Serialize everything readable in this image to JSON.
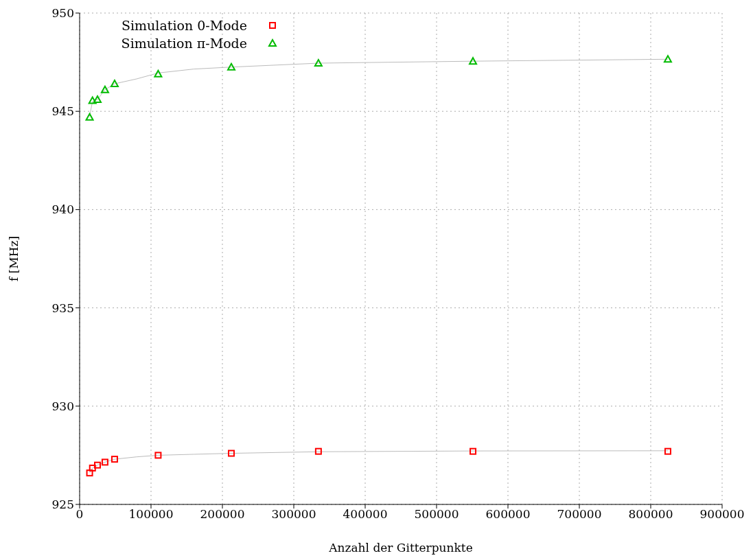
{
  "chart_data": {
    "type": "scatter",
    "xlabel": "Anzahl der Gitterpunkte",
    "ylabel": "f [MHz]",
    "xlim": [
      0,
      900000
    ],
    "xticks": [
      0,
      100000,
      200000,
      300000,
      400000,
      500000,
      600000,
      700000,
      800000,
      900000
    ],
    "ylim": [
      925,
      950
    ],
    "yticks": [
      925,
      930,
      935,
      940,
      945,
      950
    ],
    "grid": true,
    "legend": "top left",
    "series": [
      {
        "name": "Simulation 0-Mode",
        "color": "#ff0000",
        "marker": "square",
        "x": [
          14000,
          18000,
          25000,
          35500,
          49000,
          110000,
          212500,
          334500,
          551000,
          824000
        ],
        "values": [
          926.6,
          926.85,
          927.0,
          927.15,
          927.3,
          927.5,
          927.6,
          927.7,
          927.7,
          927.7
        ]
      },
      {
        "name": "Simulation π-Mode",
        "color": "#00bb00",
        "marker": "triangle",
        "x": [
          14000,
          18000,
          25000,
          35500,
          49000,
          110000,
          212500,
          334500,
          551000,
          824000
        ],
        "values": [
          944.7,
          945.55,
          945.6,
          946.1,
          946.4,
          946.9,
          947.25,
          947.45,
          947.55,
          947.65
        ]
      },
      {
        "type": "line",
        "color": "#bbbbbb",
        "marker": "none",
        "x": [
          14000,
          18000,
          25000,
          35500,
          49000,
          80000,
          110000,
          160000,
          212500,
          334500,
          551000,
          824000
        ],
        "values": [
          926.6,
          926.85,
          927.0,
          927.15,
          927.3,
          927.42,
          927.5,
          927.55,
          927.6,
          927.68,
          927.72,
          927.73
        ]
      },
      {
        "type": "line",
        "color": "#bbbbbb",
        "marker": "none",
        "x": [
          14000,
          18000,
          25000,
          35500,
          49000,
          80000,
          110000,
          160000,
          212500,
          334500,
          551000,
          824000
        ],
        "values": [
          944.75,
          945.5,
          945.6,
          946.1,
          946.4,
          946.65,
          946.95,
          947.15,
          947.25,
          947.45,
          947.55,
          947.65
        ]
      }
    ]
  }
}
